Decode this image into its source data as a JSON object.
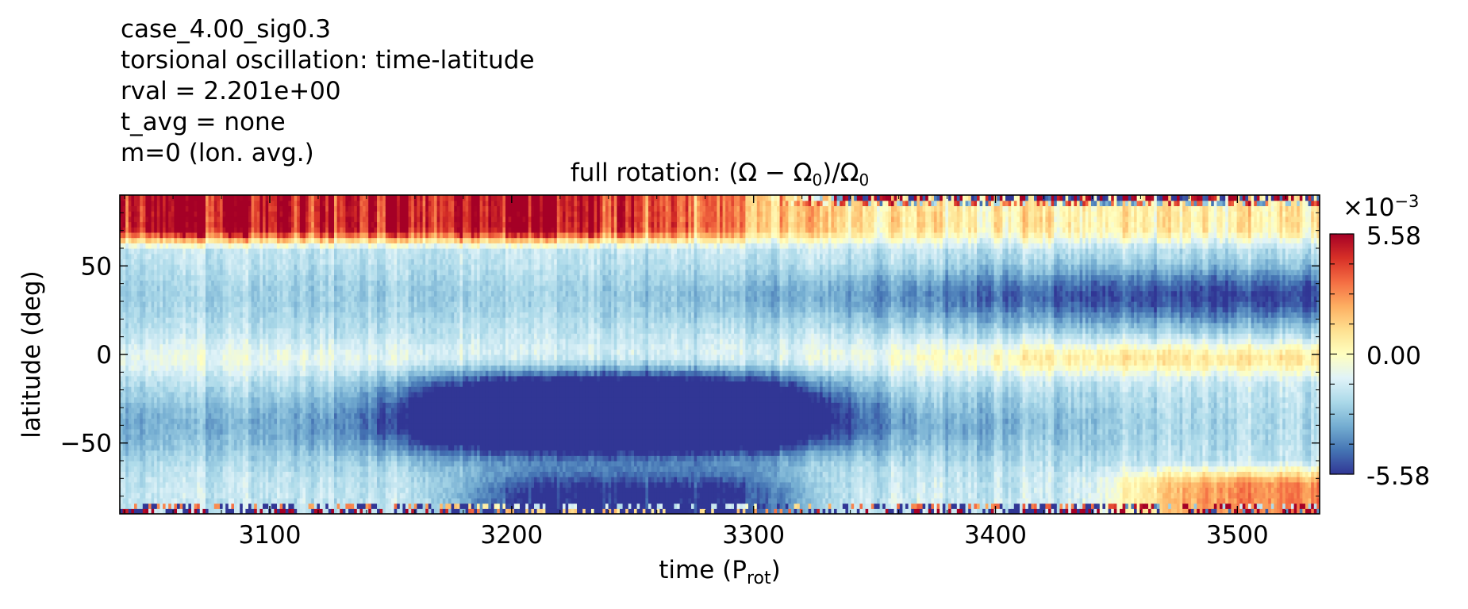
{
  "header": {
    "case_name": "case_4.00_sig0.3",
    "plot_kind": "torsional oscillation: time-latitude",
    "rval": "rval = 2.201e+00",
    "t_avg": "t_avg = none",
    "mode": "m=0 (lon. avg.)"
  },
  "chart_data": {
    "type": "heatmap",
    "title": "full rotation: (Ω − Ω₀)/Ω₀",
    "title_parts": {
      "main": "full rotation: (Ω − Ω",
      "sub0": "0",
      "mid": ")/Ω",
      "sub1": "0"
    },
    "xlabel": "time (Prot)",
    "xlabel_parts": {
      "main": "time (P",
      "sub": "rot",
      "close": ")"
    },
    "ylabel": "latitude (deg)",
    "xlim": [
      3038,
      3534
    ],
    "ylim": [
      -90,
      90
    ],
    "x_ticks": [
      3100,
      3200,
      3300,
      3400,
      3500
    ],
    "x_tick_labels": [
      "3100",
      "3200",
      "3300",
      "3400",
      "3500"
    ],
    "y_ticks": [
      50,
      0,
      -50
    ],
    "y_tick_labels": [
      "50",
      "0",
      "−50"
    ],
    "colorbar": {
      "min": -5.58,
      "max": 5.58,
      "tick_labels": [
        "5.58",
        "0.00",
        "-5.58"
      ],
      "multiplier_base": "×10",
      "multiplier_exp": "−3",
      "colormap": "RdYlBu_r",
      "colors": [
        "#313695",
        "#4575b4",
        "#74add1",
        "#abd9e9",
        "#e0f3f8",
        "#ffffbf",
        "#fee090",
        "#fdae61",
        "#f46d43",
        "#d73027",
        "#a50026"
      ]
    },
    "features": [
      {
        "description": "positive (red/orange) high-latitude northern band",
        "lat_range": [
          62,
          90
        ],
        "time_range": [
          3038,
          3230
        ],
        "value_approx": 4.5
      },
      {
        "description": "negative northern mid-latitude band",
        "lat_range": [
          10,
          55
        ],
        "time_range": [
          3038,
          3534
        ],
        "value_approx": -2.5
      },
      {
        "description": "strong negative southern anomaly",
        "lat_range": [
          -55,
          -15
        ],
        "time_range": [
          3160,
          3330
        ],
        "value_approx": -5.58
      },
      {
        "description": "near-zero equatorial band",
        "lat_range": [
          -12,
          8
        ],
        "time_range": [
          3360,
          3534
        ],
        "value_approx": 0.3
      },
      {
        "description": "weak positive southern high latitudes",
        "lat_range": [
          -85,
          -60
        ],
        "time_range": [
          3440,
          3534
        ],
        "value_approx": 1.0
      }
    ]
  }
}
